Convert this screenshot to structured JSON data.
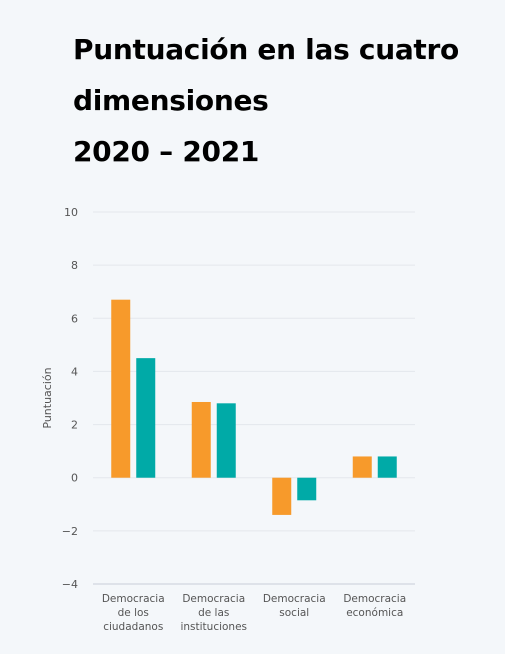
{
  "title_lines": [
    "Puntuación en las cuatro",
    "dimensiones",
    "2020 – 2021"
  ],
  "chart_data": {
    "type": "bar",
    "ylabel": "Puntuación",
    "ylim": [
      -4,
      10
    ],
    "yticks": [
      10,
      8,
      6,
      4,
      2,
      0,
      -2,
      -4
    ],
    "categories": [
      [
        "Democracia",
        "de los",
        "ciudadanos"
      ],
      [
        "Democracia",
        "de las",
        "instituciones"
      ],
      [
        "Democracia",
        "social"
      ],
      [
        "Democracia",
        "económica"
      ]
    ],
    "series": [
      {
        "color": "#f79a2b",
        "values": [
          6.7,
          2.85,
          -1.4,
          0.8
        ]
      },
      {
        "color": "#00aaa7",
        "values": [
          4.5,
          2.8,
          -0.85,
          0.8
        ]
      }
    ],
    "grid": true,
    "legend": false
  }
}
